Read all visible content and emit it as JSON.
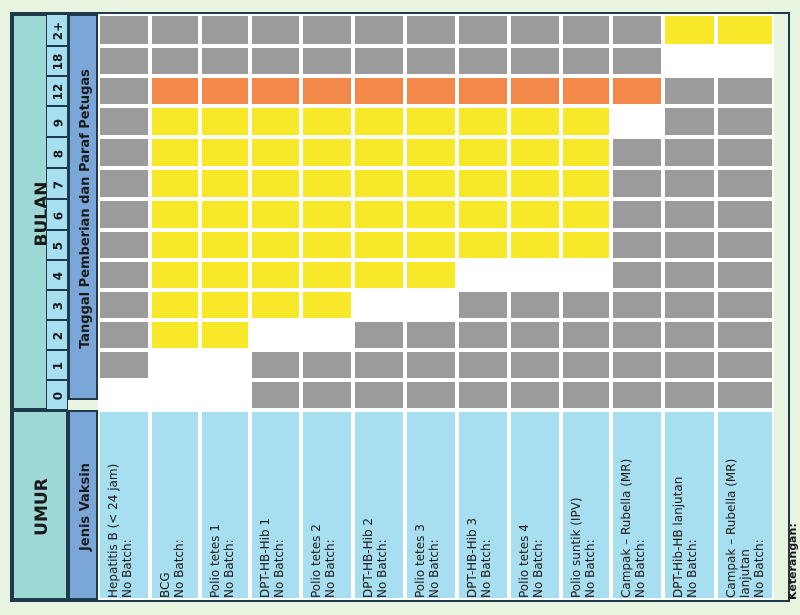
{
  "header": {
    "umur": "UMUR",
    "bulan": "BULAN",
    "jenis_vaksin": "Jenis Vaksin",
    "tanggal_pemberian": "Tanggal Pemberian dan Paraf Petugas"
  },
  "months": [
    "0",
    "1",
    "2",
    "3",
    "4",
    "5",
    "6",
    "7",
    "8",
    "9",
    "12",
    "18",
    "2+"
  ],
  "vaccines": [
    {
      "name": "Hepatitis B (< 24 jam)\nNo Batch:"
    },
    {
      "name": "BCG\nNo Batch:"
    },
    {
      "name": "Polio tetes 1\nNo Batch:"
    },
    {
      "name": "DPT-HB-Hib 1\nNo Batch:"
    },
    {
      "name": "Polio tetes 2\nNo Batch:"
    },
    {
      "name": "DPT-HB-Hib 2\nNo Batch:"
    },
    {
      "name": "Polio tetes 3\nNo Batch:"
    },
    {
      "name": "DPT-HB-Hib 3\nNo Batch:"
    },
    {
      "name": "Polio tetes 4\nNo Batch:"
    },
    {
      "name": "Polio suntik (IPV)\nNo Batch:"
    },
    {
      "name": "Campak – Rubella (MR)\nNo Batch:"
    },
    {
      "name": "DPT-Hib-HB lanjutan\nNo Batch:"
    },
    {
      "name": "Campak – Rubella (MR)\nlanjutan\nNo Batch:"
    }
  ],
  "cell_states": [
    [
      "white",
      "grey",
      "grey",
      "grey",
      "grey",
      "grey",
      "grey",
      "grey",
      "grey",
      "grey",
      "grey",
      "grey",
      "grey"
    ],
    [
      "white",
      "white",
      "yellow",
      "yellow",
      "yellow",
      "yellow",
      "yellow",
      "yellow",
      "yellow",
      "yellow",
      "orange",
      "grey",
      "grey"
    ],
    [
      "white",
      "white",
      "yellow",
      "yellow",
      "yellow",
      "yellow",
      "yellow",
      "yellow",
      "yellow",
      "yellow",
      "orange",
      "grey",
      "grey"
    ],
    [
      "grey",
      "grey",
      "white",
      "yellow",
      "yellow",
      "yellow",
      "yellow",
      "yellow",
      "yellow",
      "yellow",
      "orange",
      "grey",
      "grey"
    ],
    [
      "grey",
      "grey",
      "white",
      "yellow",
      "yellow",
      "yellow",
      "yellow",
      "yellow",
      "yellow",
      "yellow",
      "orange",
      "grey",
      "grey"
    ],
    [
      "grey",
      "grey",
      "grey",
      "white",
      "yellow",
      "yellow",
      "yellow",
      "yellow",
      "yellow",
      "yellow",
      "orange",
      "grey",
      "grey"
    ],
    [
      "grey",
      "grey",
      "grey",
      "white",
      "yellow",
      "yellow",
      "yellow",
      "yellow",
      "yellow",
      "yellow",
      "orange",
      "grey",
      "grey"
    ],
    [
      "grey",
      "grey",
      "grey",
      "grey",
      "white",
      "yellow",
      "yellow",
      "yellow",
      "yellow",
      "yellow",
      "orange",
      "grey",
      "grey"
    ],
    [
      "grey",
      "grey",
      "grey",
      "grey",
      "white",
      "yellow",
      "yellow",
      "yellow",
      "yellow",
      "yellow",
      "orange",
      "grey",
      "grey"
    ],
    [
      "grey",
      "grey",
      "grey",
      "grey",
      "white",
      "yellow",
      "yellow",
      "yellow",
      "yellow",
      "yellow",
      "orange",
      "grey",
      "grey"
    ],
    [
      "grey",
      "grey",
      "grey",
      "grey",
      "grey",
      "grey",
      "grey",
      "grey",
      "grey",
      "white",
      "orange",
      "grey",
      "grey"
    ],
    [
      "grey",
      "grey",
      "grey",
      "grey",
      "grey",
      "grey",
      "grey",
      "grey",
      "grey",
      "grey",
      "grey",
      "white",
      "yellow"
    ],
    [
      "grey",
      "grey",
      "grey",
      "grey",
      "grey",
      "grey",
      "grey",
      "grey",
      "grey",
      "grey",
      "grey",
      "white",
      "yellow"
    ]
  ],
  "colors": {
    "white": "#ffffff",
    "grey": "#9b9b9b",
    "yellow": "#f7e92a",
    "orange": "#f2894a",
    "header_teal": "#9fd9d6",
    "header_blue": "#7aa7d8",
    "row_blue": "#a8dff0"
  },
  "footer": {
    "keterangan": "Keterangan:"
  }
}
